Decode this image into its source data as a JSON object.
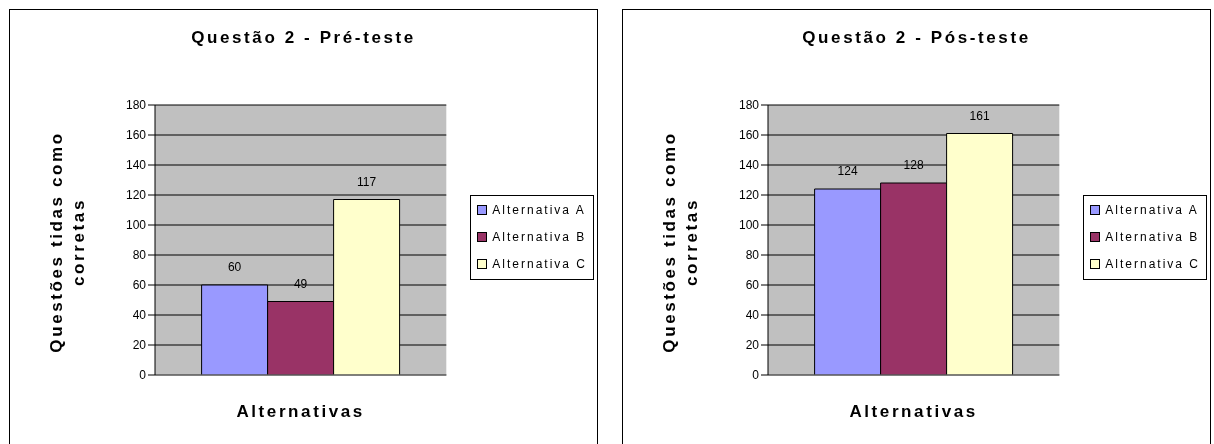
{
  "chart_data": [
    {
      "type": "bar",
      "title": "Questão 2 - Pré-teste",
      "xlabel": "Alternativas",
      "ylabel": "Questões tidas como corretas",
      "categories": [
        null
      ],
      "series": [
        {
          "name": "Alternativa A",
          "color": "#9999ff",
          "values": [
            60
          ]
        },
        {
          "name": "Alternativa B",
          "color": "#993366",
          "values": [
            49
          ]
        },
        {
          "name": "Alternativa C",
          "color": "#ffffcc",
          "values": [
            117
          ]
        }
      ],
      "ylim": [
        0,
        180
      ],
      "yticks": [
        0,
        20,
        40,
        60,
        80,
        100,
        120,
        140,
        160,
        180
      ],
      "grid": "y",
      "legend": "right",
      "data_labels": true
    },
    {
      "type": "bar",
      "title": "Questão 2 - Pós-teste",
      "xlabel": "Alternativas",
      "ylabel": "Questões tidas como corretas",
      "categories": [
        null
      ],
      "series": [
        {
          "name": "Alternativa A",
          "color": "#9999ff",
          "values": [
            124
          ]
        },
        {
          "name": "Alternativa B",
          "color": "#993366",
          "values": [
            128
          ]
        },
        {
          "name": "Alternativa C",
          "color": "#ffffcc",
          "values": [
            161
          ]
        }
      ],
      "ylim": [
        0,
        180
      ],
      "yticks": [
        0,
        20,
        40,
        60,
        80,
        100,
        120,
        140,
        160,
        180
      ],
      "grid": "y",
      "legend": "right",
      "data_labels": true
    }
  ]
}
